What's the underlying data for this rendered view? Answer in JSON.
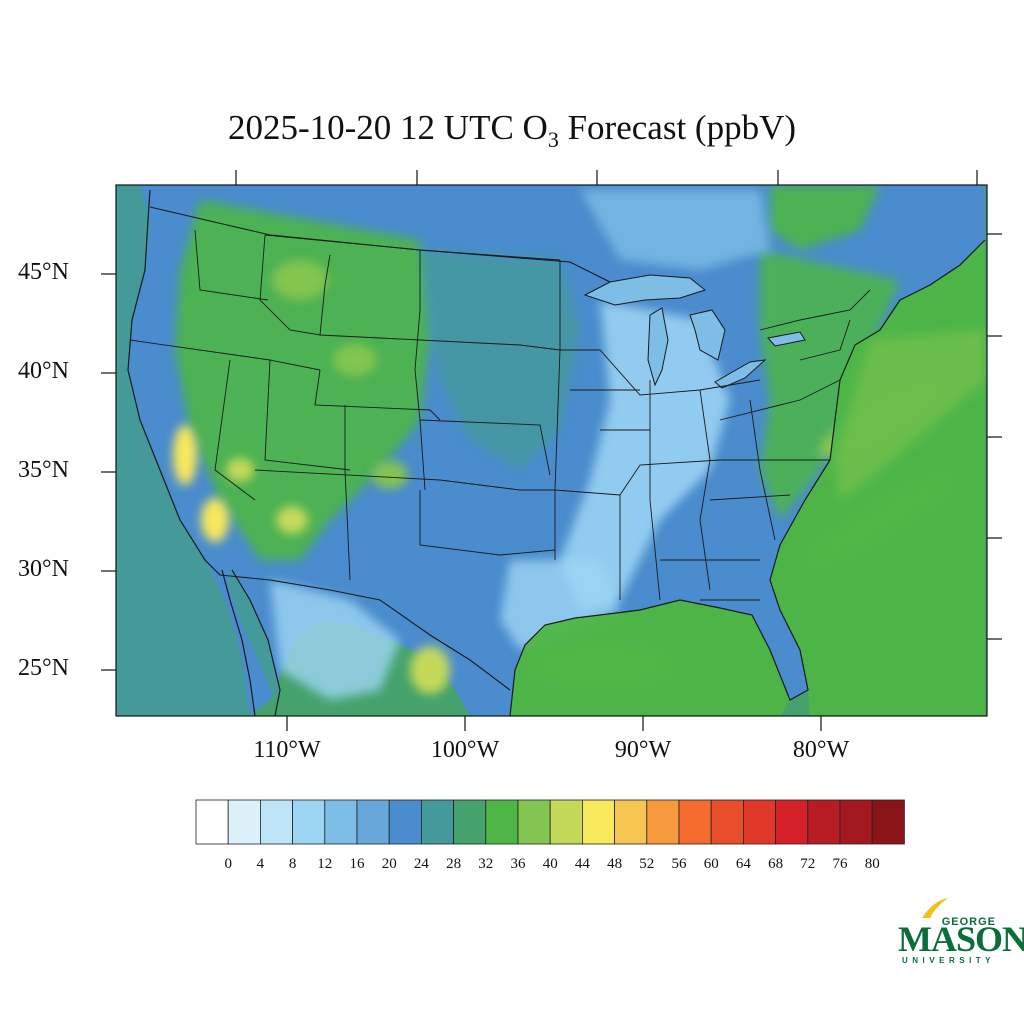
{
  "title": {
    "main": "2025-10-20 12 UTC O",
    "sub": "3",
    "rest": " Forecast (ppbV)"
  },
  "axes": {
    "lat_labels": [
      "45°N",
      "40°N",
      "35°N",
      "30°N",
      "25°N"
    ],
    "lon_labels": [
      "110°W",
      "100°W",
      "90°W",
      "80°W"
    ]
  },
  "colorbar": {
    "labels": [
      "0",
      "4",
      "8",
      "12",
      "16",
      "20",
      "24",
      "28",
      "32",
      "36",
      "40",
      "44",
      "48",
      "52",
      "56",
      "60",
      "64",
      "68",
      "72",
      "76",
      "80"
    ],
    "colors": [
      "#ffffff",
      "#ddf1fb",
      "#bde5f7",
      "#9dd6f4",
      "#7dbde6",
      "#67a7da",
      "#4a8ccd",
      "#449a9b",
      "#46a26d",
      "#4eb647",
      "#83c550",
      "#c4d95a",
      "#f8e85c",
      "#f6c450",
      "#f79a3e",
      "#f36b2d",
      "#e84e2a",
      "#df3728",
      "#d42129",
      "#b71c22",
      "#a2181e",
      "#8b1418"
    ]
  },
  "legend_colors_note": "",
  "logo": {
    "george": "GEORGE",
    "mason": "MASON",
    "university": "UNIVERSITY",
    "brand_green": "#0b6e3a",
    "brand_gold": "#f2c01b"
  },
  "map_colors": {
    "ocean_pacific": "#449a9b",
    "ocean_atlantic": "#4eb647",
    "gulf": "#4eb647",
    "land_base": "#4a8ccd",
    "outline": "#1a1a1a"
  }
}
